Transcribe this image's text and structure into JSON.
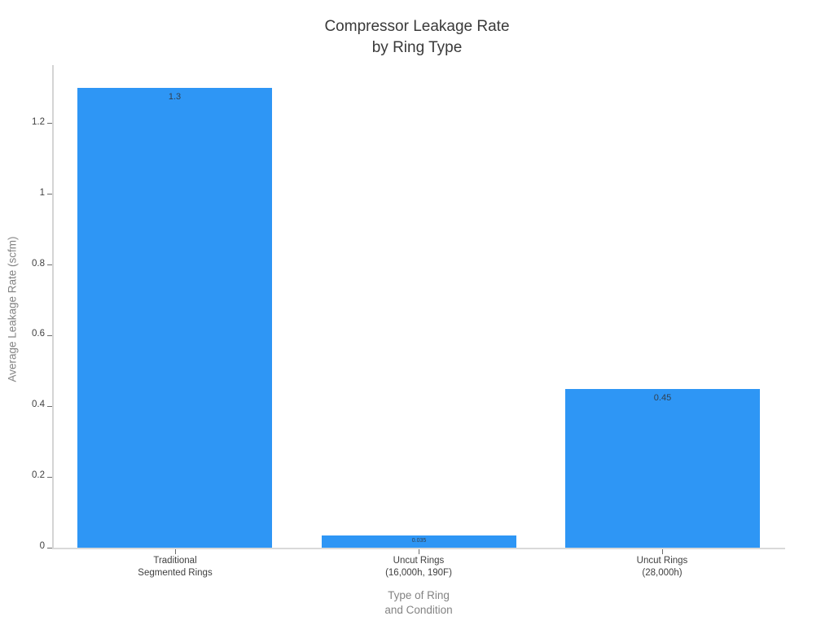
{
  "page": {
    "background_color": "#ffffff"
  },
  "chart_data": {
    "type": "bar",
    "title_lines": [
      "Compressor Leakage Rate",
      "by Ring Type"
    ],
    "title": "Compressor Leakage Rate by Ring Type",
    "categories": [
      {
        "lines": [
          "Traditional",
          "Segmented Rings"
        ]
      },
      {
        "lines": [
          "Uncut Rings",
          "(16,000h, 190F)"
        ]
      },
      {
        "lines": [
          "Uncut Rings",
          "(28,000h)"
        ]
      }
    ],
    "values": [
      1.3,
      0.035,
      0.45
    ],
    "bar_value_labels": [
      "1.3",
      "0.035",
      "0.45"
    ],
    "xlabel_lines": [
      "Type of Ring",
      "and Condition"
    ],
    "xlabel": "Type of Ring and Condition",
    "ylabel": "Average Leakage Rate (scfm)",
    "ytick_values": [
      0,
      0.2,
      0.4,
      0.6,
      0.8,
      1.0,
      1.2
    ],
    "ytick_labels": [
      "0",
      "0.2",
      "0.4",
      "0.6",
      "0.8",
      "1",
      "1.2"
    ],
    "ylim": [
      0,
      1.3655
    ],
    "bar_color": "#2E96F5",
    "grid": false,
    "legend": "none",
    "bar_label_position": "inside-top",
    "colors": {
      "title_text": "#3a3a3a",
      "axis_title_text": "#848484",
      "tick_label_text": "#3f3f3f",
      "bar_label_text": "#31404f",
      "spine": "#d4d4d4",
      "tick_mark": "#6b6b6b"
    }
  }
}
